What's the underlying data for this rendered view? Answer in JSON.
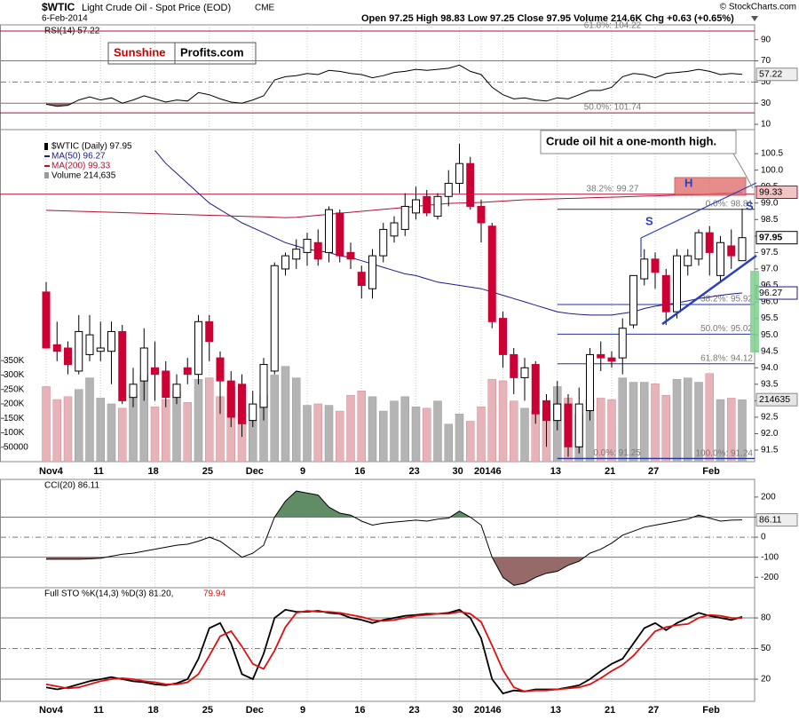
{
  "chart_data": [
    {
      "type": "line",
      "label": "RSI(14) 57.22",
      "color": "#000000",
      "values": [
        29,
        27,
        28,
        33,
        36,
        33,
        35,
        30,
        33,
        37,
        34,
        31,
        33,
        32,
        40,
        38,
        34,
        31,
        30,
        33,
        37,
        52,
        55,
        56,
        58,
        57,
        61,
        60,
        58,
        57,
        54,
        56,
        59,
        60,
        62,
        61,
        62,
        63,
        66,
        60,
        57,
        45,
        38,
        34,
        35,
        33,
        32,
        35,
        34,
        38,
        42,
        42,
        45,
        55,
        58,
        57,
        54,
        58,
        59,
        60,
        62,
        60,
        57,
        58,
        57.22
      ],
      "ylim": [
        5,
        104
      ],
      "yticks": [
        10,
        30,
        50,
        70,
        90
      ],
      "levels": [
        30,
        70
      ],
      "midline": 50,
      "fill_below": 30,
      "fill_color": "#8c5a5a"
    },
    {
      "type": "candlestick",
      "symbol": "$WTIC",
      "title": "Light Crude Oil - Spot Price (EOD)",
      "exchange": "CME",
      "subtitle": "6-Feb-2014",
      "stats": "Open 97.25 High 98.83 Low 97.25 Close 97.95 Volume 214.6K Chg +0.63 (+0.65%)",
      "credit": "© StockCharts.com",
      "name": "$WTIC (Daily) 97.95",
      "categories": [
        "Nov4",
        null,
        null,
        null,
        null,
        "11",
        null,
        null,
        null,
        null,
        "18",
        null,
        null,
        null,
        null,
        "25",
        null,
        null,
        null,
        "Dec",
        null,
        null,
        null,
        null,
        "9",
        null,
        null,
        null,
        null,
        "16",
        null,
        null,
        null,
        null,
        "23",
        null,
        null,
        null,
        "30",
        null,
        "2014",
        null,
        "6",
        null,
        null,
        null,
        null,
        "13",
        null,
        null,
        null,
        null,
        "21",
        null,
        null,
        null,
        "27",
        null,
        null,
        null,
        null,
        "Feb",
        null,
        null,
        null
      ],
      "open": [
        96.3,
        94.7,
        94.6,
        93.9,
        94.4,
        94.5,
        94.5,
        95.1,
        93.1,
        93.6,
        94.0,
        93.9,
        93.1,
        94.0,
        93.8,
        95.4,
        94.3,
        93.6,
        93.5,
        92.4,
        92.8,
        93.9,
        97.0,
        97.3,
        97.5,
        97.8,
        97.5,
        98.7,
        97.5,
        96.9,
        96.4,
        97.4,
        98.0,
        98.2,
        98.7,
        99.2,
        98.6,
        99.2,
        99.6,
        100.2,
        98.9,
        98.3,
        95.5,
        94.4,
        93.7,
        94.1,
        93.0,
        92.4,
        92.9,
        91.6,
        92.7,
        94.4,
        94.3,
        94.3,
        95.3,
        96.7,
        97.3,
        96.8,
        95.7,
        97.1,
        97.3,
        98.1,
        96.8,
        97.7,
        97.25
      ],
      "high": [
        96.6,
        95.4,
        94.8,
        95.6,
        95.6,
        95.4,
        95.4,
        95.3,
        94.0,
        95.2,
        94.8,
        94.2,
        93.8,
        94.3,
        95.6,
        95.6,
        94.5,
        93.9,
        93.8,
        93.3,
        94.3,
        97.2,
        97.5,
        97.9,
        98.1,
        98.2,
        98.9,
        98.8,
        97.8,
        97.1,
        97.6,
        98.4,
        98.6,
        99.3,
        99.5,
        99.4,
        99.3,
        100.0,
        100.8,
        100.4,
        99.1,
        98.4,
        95.7,
        94.6,
        94.3,
        94.2,
        93.2,
        93.6,
        93.2,
        93.4,
        94.6,
        94.8,
        94.5,
        95.5,
        96.8,
        97.6,
        97.5,
        97.0,
        97.6,
        97.6,
        98.2,
        98.3,
        98.0,
        98.2,
        98.83
      ],
      "low": [
        94.6,
        94.2,
        93.8,
        93.8,
        94.2,
        94.2,
        93.5,
        92.9,
        92.8,
        93.0,
        93.0,
        92.8,
        92.9,
        93.5,
        93.5,
        94.2,
        92.6,
        92.2,
        91.9,
        92.2,
        92.4,
        93.8,
        96.8,
        97.0,
        97.1,
        97.1,
        97.2,
        97.2,
        97.0,
        96.1,
        96.1,
        97.2,
        97.8,
        98.0,
        98.5,
        98.6,
        98.5,
        98.9,
        99.3,
        98.8,
        97.8,
        95.2,
        94.0,
        93.2,
        93.0,
        92.3,
        91.6,
        92.1,
        91.3,
        91.4,
        92.4,
        93.9,
        94.0,
        93.8,
        95.2,
        96.5,
        96.4,
        95.3,
        95.5,
        96.8,
        97.1,
        96.8,
        96.6,
        97.0,
        97.25
      ],
      "close": [
        94.6,
        94.5,
        94.1,
        95.1,
        95.0,
        94.6,
        95.1,
        93.0,
        93.5,
        94.6,
        93.8,
        93.1,
        93.5,
        93.8,
        95.4,
        94.8,
        93.6,
        92.5,
        92.3,
        92.9,
        94.1,
        97.1,
        97.4,
        97.6,
        97.9,
        97.3,
        98.8,
        97.4,
        97.3,
        96.5,
        97.4,
        98.2,
        98.4,
        98.9,
        99.1,
        98.7,
        99.2,
        99.6,
        100.2,
        98.9,
        98.4,
        95.4,
        94.4,
        93.7,
        94.0,
        92.6,
        92.4,
        92.9,
        91.6,
        92.9,
        94.4,
        94.3,
        94.2,
        95.2,
        96.8,
        97.3,
        96.9,
        95.7,
        97.4,
        97.4,
        98.1,
        97.5,
        97.8,
        97.4,
        97.95
      ],
      "up_color": "#ffffff",
      "down_color": "#cc0033",
      "series": [
        {
          "name": "MA(50) 96.27",
          "color": "#1a1a8c",
          "values": [
            null,
            null,
            null,
            null,
            null,
            null,
            null,
            null,
            null,
            null,
            100.6,
            100.2,
            99.9,
            99.6,
            99.3,
            99.0,
            98.8,
            98.6,
            98.4,
            98.25,
            98.1,
            97.95,
            97.8,
            97.7,
            97.6,
            97.55,
            97.5,
            97.4,
            97.35,
            97.25,
            97.15,
            97.05,
            96.95,
            96.85,
            96.8,
            96.7,
            96.6,
            96.55,
            96.5,
            96.45,
            96.4,
            96.3,
            96.2,
            96.1,
            96.0,
            95.9,
            95.8,
            95.7,
            95.65,
            95.62,
            95.6,
            95.6,
            95.6,
            95.65,
            95.7,
            95.8,
            95.87,
            95.92,
            95.97,
            96.03,
            96.1,
            96.15,
            96.2,
            96.24,
            96.27
          ]
        },
        {
          "name": "MA(200) 99.33",
          "color": "#b01030",
          "values": [
            98.78,
            98.77,
            98.76,
            98.75,
            98.74,
            98.73,
            98.72,
            98.71,
            98.7,
            98.69,
            98.68,
            98.67,
            98.66,
            98.65,
            98.64,
            98.63,
            98.62,
            98.61,
            98.6,
            98.59,
            98.58,
            98.57,
            98.56,
            98.57,
            98.6,
            98.63,
            98.66,
            98.69,
            98.72,
            98.75,
            98.78,
            98.81,
            98.84,
            98.87,
            98.9,
            98.93,
            98.96,
            98.99,
            99.0,
            99.01,
            99.02,
            99.04,
            99.06,
            99.08,
            99.1,
            99.11,
            99.12,
            99.13,
            99.14,
            99.15,
            99.16,
            99.17,
            99.18,
            99.19,
            99.2,
            99.21,
            99.22,
            99.23,
            99.24,
            99.25,
            99.26,
            99.28,
            99.3,
            99.31,
            99.33
          ]
        }
      ],
      "volume": {
        "name": "Volume 214,635",
        "axis": "y2",
        "up_color": "#b4b4b4",
        "down_color": "#e6b3b8",
        "values": [
          260000,
          215000,
          225000,
          250000,
          290000,
          220000,
          200000,
          185000,
          230000,
          300000,
          190000,
          215000,
          245000,
          205000,
          285000,
          290000,
          225000,
          260000,
          170000,
          140000,
          230000,
          300000,
          330000,
          290000,
          195000,
          200000,
          195000,
          175000,
          230000,
          245000,
          225000,
          175000,
          210000,
          225000,
          190000,
          185000,
          210000,
          130000,
          165000,
          140000,
          190000,
          285000,
          280000,
          210000,
          185000,
          175000,
          180000,
          260000,
          220000,
          165000,
          215000,
          220000,
          215000,
          290000,
          275000,
          275000,
          270000,
          230000,
          285000,
          290000,
          275000,
          305000,
          215000,
          220000,
          214635
        ]
      },
      "ylim": [
        91.15,
        101.23
      ],
      "yticks": [
        91.5,
        {
          "value": 92,
          "label": "92.0"
        },
        92.5,
        {
          "value": 93,
          "label": "93.0"
        },
        93.5,
        {
          "value": 94,
          "label": "94.0"
        },
        94.5,
        {
          "value": 95,
          "label": "95.0"
        },
        95.5,
        {
          "value": 96,
          "label": "96.0"
        },
        96.5,
        {
          "value": 97,
          "label": "97.0"
        },
        97.5,
        {
          "value": 98,
          "label": "98.0"
        },
        98.5,
        {
          "value": 99,
          "label": "99.0"
        },
        99.5,
        {
          "value": 100,
          "label": "100.0"
        },
        100.5
      ],
      "y2lim": [
        0,
        1150000
      ],
      "y2ticks": [
        50000,
        {
          "value": 100000,
          "label": "100K"
        },
        {
          "value": 150000,
          "label": "150K"
        },
        {
          "value": 200000,
          "label": "200K"
        },
        {
          "value": 250000,
          "label": "250K"
        },
        {
          "value": 300000,
          "label": "300K"
        },
        {
          "value": 350000,
          "label": "350K"
        }
      ],
      "fib_levels": [
        {
          "label": "61.8%: 104.22",
          "value": 104.22,
          "color": "#b01030"
        },
        {
          "label": "50.0%: 101.74",
          "value": 101.74,
          "color": "#b01030"
        },
        {
          "label": "38.2%: 99.27",
          "value": 99.27,
          "color": "#b01030"
        }
      ],
      "fib_retracement": [
        {
          "label": "0.0%: 98.81",
          "value": 98.81,
          "color": "#333333"
        },
        {
          "label": "38.2%: 95.92",
          "value": 95.92,
          "color": "#2030a0"
        },
        {
          "label": "50.0%: 95.02",
          "value": 95.02,
          "color": "#2030a0"
        },
        {
          "label": "61.8%: 94.12",
          "value": 94.12,
          "color": "#2030a0"
        },
        {
          "label": "0.0%: 91.25",
          "value": 91.25,
          "color": "#2030a0"
        },
        {
          "label": "100.0%: 91.24",
          "value": 91.24,
          "color": "#2030a0"
        }
      ],
      "annotations": {
        "callout": "Crude oil hit a one-month high.",
        "patterns": [
          "S",
          "H",
          "S"
        ]
      },
      "logo": [
        "Sunshine",
        "Profits.com"
      ],
      "grid": true
    },
    {
      "type": "line",
      "label": "CCI(20) 86.11",
      "color": "#000000",
      "values": [
        -110,
        -110,
        -110,
        -110,
        -108,
        -105,
        -95,
        -85,
        -80,
        -70,
        -60,
        -50,
        -40,
        -35,
        -20,
        0,
        -20,
        -60,
        -100,
        -80,
        -40,
        100,
        180,
        230,
        220,
        210,
        150,
        120,
        110,
        80,
        60,
        70,
        75,
        80,
        85,
        80,
        90,
        95,
        130,
        100,
        60,
        -100,
        -200,
        -240,
        -230,
        -200,
        -180,
        -170,
        -140,
        -120,
        -80,
        -60,
        -30,
        10,
        30,
        50,
        60,
        70,
        80,
        90,
        110,
        95,
        80,
        85,
        86.11
      ],
      "ylim": [
        -252,
        288
      ],
      "yticks": [
        -200,
        -100,
        0,
        100,
        200
      ],
      "levels": [
        -100,
        100
      ],
      "midline": 0,
      "fill_above": 100,
      "fill_above_color": "#4f7f55",
      "fill_below": -100,
      "fill_color": "#8c5a5a"
    },
    {
      "type": "line",
      "label": "Full STO %K(14,3) %D(3) 81.20,",
      "label_d": "79.94",
      "series": [
        {
          "color": "#000000",
          "values": [
            12,
            10,
            12,
            15,
            18,
            20,
            22,
            20,
            18,
            17,
            15,
            14,
            16,
            20,
            40,
            70,
            75,
            55,
            25,
            20,
            45,
            80,
            88,
            86,
            86,
            87,
            85,
            84,
            80,
            78,
            75,
            78,
            80,
            82,
            83,
            84,
            84,
            85,
            88,
            80,
            60,
            20,
            6,
            9,
            8,
            10,
            10,
            10,
            12,
            14,
            20,
            28,
            35,
            40,
            55,
            70,
            75,
            68,
            75,
            80,
            85,
            82,
            80,
            78,
            81.2
          ]
        },
        {
          "color": "#e01010",
          "values": [
            15,
            13,
            11,
            12,
            15,
            18,
            20,
            21,
            20,
            18,
            17,
            15,
            15,
            17,
            25,
            43,
            62,
            67,
            52,
            35,
            30,
            48,
            71,
            85,
            87,
            86,
            86,
            85,
            83,
            81,
            78,
            77,
            78,
            80,
            82,
            83,
            84,
            84,
            86,
            84,
            76,
            53,
            29,
            12,
            8,
            9,
            9,
            10,
            11,
            12,
            15,
            21,
            28,
            34,
            43,
            55,
            67,
            71,
            73,
            74,
            80,
            83,
            82,
            80,
            79.94
          ]
        }
      ],
      "ylim": [
        -1.7,
        109.6
      ],
      "yticks": [
        20,
        50,
        80
      ],
      "levels": [
        20,
        80
      ],
      "midline": 50
    }
  ]
}
